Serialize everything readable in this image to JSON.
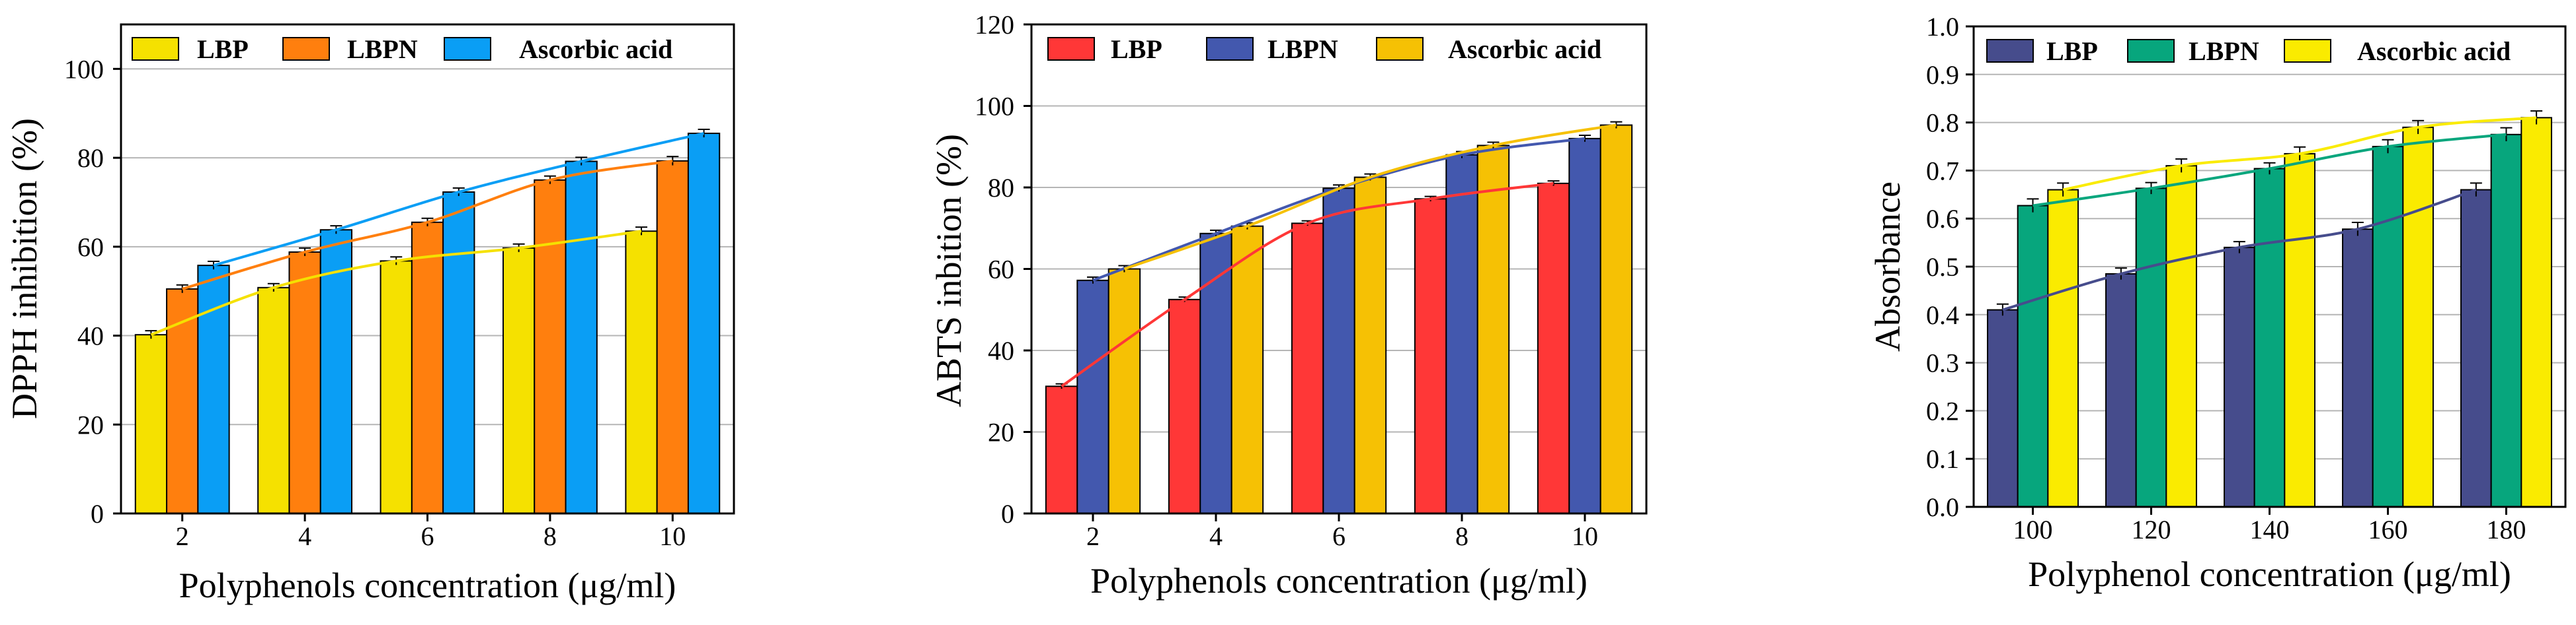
{
  "chart_data": [
    {
      "type": "bar",
      "title": "",
      "xlabel": "Polyphenols concentration (μg/ml)",
      "ylabel": "DPPH inhibition (%)",
      "categories": [
        "2",
        "4",
        "6",
        "8",
        "10"
      ],
      "ylim": [
        0,
        110
      ],
      "yticks": [
        "0",
        "20",
        "40",
        "60",
        "80",
        "100"
      ],
      "grid": true,
      "legend_position": "top",
      "series": [
        {
          "name": "LBP",
          "color": "#F5E100",
          "values": [
            40.2,
            50.8,
            56.8,
            59.7,
            63.5
          ],
          "errors": [
            0.9,
            0.9,
            0.9,
            0.9,
            0.9
          ]
        },
        {
          "name": "LBPN",
          "color": "#FF7F0E",
          "values": [
            50.5,
            58.8,
            65.5,
            75.0,
            79.3
          ],
          "errors": [
            0.9,
            0.9,
            0.9,
            0.9,
            1.0
          ]
        },
        {
          "name": "Ascorbic acid",
          "color": "#0A9EF5",
          "values": [
            55.8,
            63.8,
            72.3,
            79.2,
            85.5
          ],
          "errors": [
            0.9,
            0.9,
            0.9,
            0.9,
            0.9
          ]
        }
      ]
    },
    {
      "type": "bar",
      "title": "",
      "xlabel": "Polyphenols concentration (μg/ml)",
      "ylabel": "ABTS inbition (%)",
      "categories": [
        "2",
        "4",
        "6",
        "8",
        "10"
      ],
      "ylim": [
        0,
        120
      ],
      "yticks": [
        "0",
        "20",
        "40",
        "60",
        "80",
        "100",
        "120"
      ],
      "grid": true,
      "legend_position": "top",
      "series": [
        {
          "name": "LBP",
          "color": "#FF3737",
          "values": [
            31.2,
            52.5,
            71.2,
            77.2,
            81.0
          ],
          "errors": [
            0.6,
            0.6,
            0.6,
            0.6,
            0.6
          ]
        },
        {
          "name": "LBPN",
          "color": "#4358AE",
          "values": [
            57.2,
            68.7,
            79.8,
            88.0,
            92.0
          ],
          "errors": [
            0.8,
            0.8,
            0.8,
            0.8,
            0.8
          ]
        },
        {
          "name": "Ascorbic acid",
          "color": "#F6C104",
          "values": [
            60.0,
            70.5,
            82.5,
            90.3,
            95.3
          ],
          "errors": [
            0.8,
            0.8,
            0.8,
            0.8,
            0.8
          ]
        }
      ]
    },
    {
      "type": "bar",
      "title": "",
      "xlabel": "Polyphenol concentration (μg/ml)",
      "ylabel": "Absorbance",
      "categories": [
        "100",
        "120",
        "140",
        "160",
        "180"
      ],
      "ylim": [
        0,
        1.0
      ],
      "yticks": [
        "0.0",
        "0.1",
        "0.2",
        "0.3",
        "0.4",
        "0.5",
        "0.6",
        "0.7",
        "0.8",
        "0.9",
        "1.0"
      ],
      "grid": true,
      "legend_position": "top",
      "series": [
        {
          "name": "LBP",
          "color": "#464C8C",
          "values": [
            0.41,
            0.485,
            0.54,
            0.578,
            0.66
          ],
          "errors": [
            0.012,
            0.012,
            0.012,
            0.014,
            0.014
          ]
        },
        {
          "name": "LBPN",
          "color": "#07A67D",
          "values": [
            0.627,
            0.663,
            0.704,
            0.75,
            0.775
          ],
          "errors": [
            0.014,
            0.012,
            0.012,
            0.014,
            0.014
          ]
        },
        {
          "name": "Ascorbic acid",
          "color": "#FAEB00",
          "values": [
            0.66,
            0.71,
            0.735,
            0.79,
            0.81
          ],
          "errors": [
            0.014,
            0.014,
            0.014,
            0.014,
            0.014
          ]
        }
      ]
    }
  ]
}
